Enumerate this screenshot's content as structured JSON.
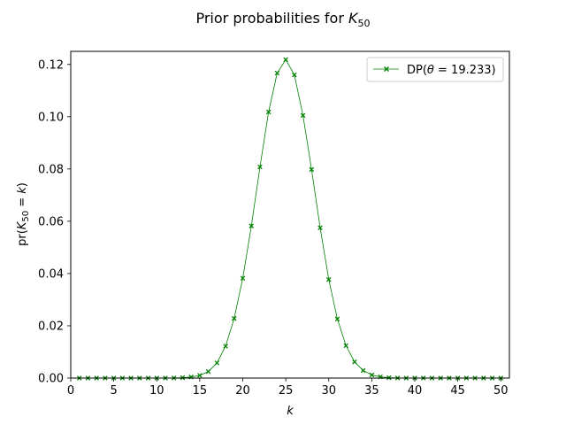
{
  "chart_data": {
    "type": "line",
    "title": "Prior probabilities for K",
    "title_sub": "50",
    "xlabel": "k",
    "ylabel_prefix": "pr(",
    "ylabel_var": "K",
    "ylabel_sub": "50",
    "ylabel_suffix": " = ",
    "ylabel_k": "k",
    "ylabel_close": ")",
    "xlim": [
      0,
      51
    ],
    "ylim": [
      0,
      0.125
    ],
    "xticks": [
      0,
      5,
      10,
      15,
      20,
      25,
      30,
      35,
      40,
      45,
      50
    ],
    "xtick_labels": [
      "0",
      "5",
      "10",
      "15",
      "20",
      "25",
      "30",
      "35",
      "40",
      "45",
      "50"
    ],
    "yticks": [
      0.0,
      0.02,
      0.04,
      0.06,
      0.08,
      0.1,
      0.12
    ],
    "ytick_labels": [
      "0.00",
      "0.02",
      "0.04",
      "0.06",
      "0.08",
      "0.10",
      "0.12"
    ],
    "grid": false,
    "legend_position": "top-right",
    "series": [
      {
        "name": "DP(θ = 19.233)",
        "legend_prefix": "DP(",
        "legend_theta": "θ",
        "legend_rest": " = 19.233)",
        "color": "#008000",
        "marker": "x",
        "x": [
          1,
          2,
          3,
          4,
          5,
          6,
          7,
          8,
          9,
          10,
          11,
          12,
          13,
          14,
          15,
          16,
          17,
          18,
          19,
          20,
          21,
          22,
          23,
          24,
          25,
          26,
          27,
          28,
          29,
          30,
          31,
          32,
          33,
          34,
          35,
          36,
          37,
          38,
          39,
          40,
          41,
          42,
          43,
          44,
          45,
          46,
          47,
          48,
          49,
          50
        ],
        "y": [
          0,
          0,
          0,
          0,
          0,
          0,
          0,
          0,
          0,
          0,
          0,
          5e-05,
          0.00015,
          0.0004,
          0.001,
          0.0025,
          0.0058,
          0.0122,
          0.0228,
          0.0382,
          0.0582,
          0.0808,
          0.1018,
          0.1167,
          0.1218,
          0.116,
          0.1005,
          0.0798,
          0.0575,
          0.0377,
          0.0226,
          0.0124,
          0.0062,
          0.0029,
          0.0012,
          0.00045,
          0.00015,
          4e-05,
          0,
          0,
          0,
          0,
          0,
          0,
          0,
          0,
          0,
          0,
          0,
          0
        ]
      }
    ]
  }
}
